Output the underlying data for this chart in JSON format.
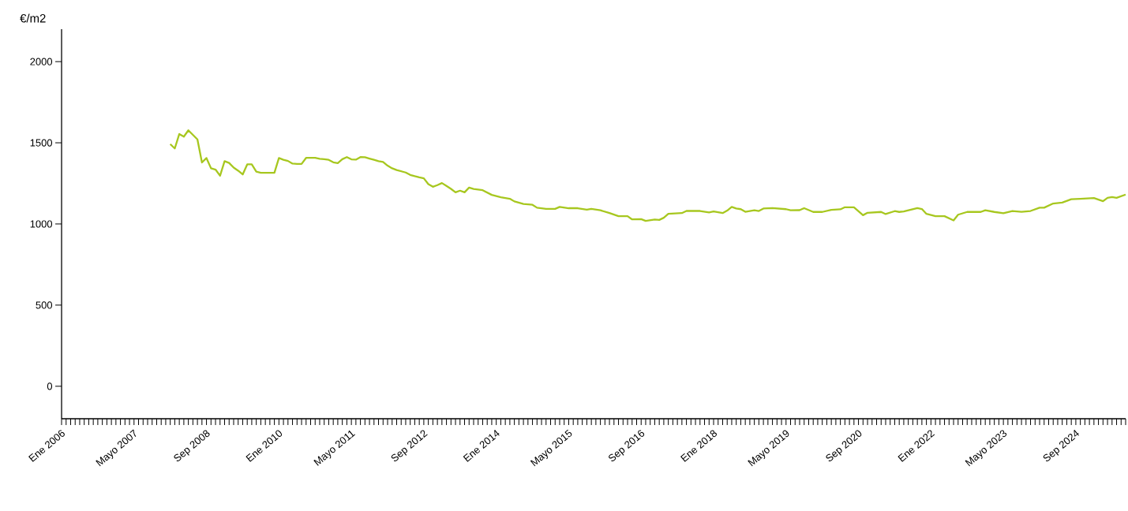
{
  "chart_data": {
    "type": "line",
    "ylabel": "€/m2",
    "xlim": [
      "2006-01",
      "2025-08"
    ],
    "ylim": [
      -200,
      2200
    ],
    "yticks": [
      0,
      500,
      1000,
      1500,
      2000
    ],
    "xticks": [
      {
        "value": "2006-01",
        "label": "Ene 2006"
      },
      {
        "value": "2006-02",
        "label": null
      },
      {
        "value": "2006-03",
        "label": null
      },
      {
        "value": "2006-04",
        "label": null
      },
      {
        "value": "2006-05",
        "label": null
      },
      {
        "value": "2006-06",
        "label": null
      },
      {
        "value": "2006-07",
        "label": null
      },
      {
        "value": "2006-08",
        "label": null
      },
      {
        "value": "2006-09",
        "label": null
      },
      {
        "value": "2006-10",
        "label": null
      },
      {
        "value": "2006-11",
        "label": null
      },
      {
        "value": "2006-12",
        "label": null
      },
      {
        "value": "2007-01",
        "label": null
      },
      {
        "value": "2007-02",
        "label": null
      },
      {
        "value": "2007-03",
        "label": null
      },
      {
        "value": "2007-04",
        "label": null
      },
      {
        "value": "2007-05",
        "label": "Mayo 2007"
      },
      {
        "value": "2007-06",
        "label": null
      },
      {
        "value": "2007-07",
        "label": null
      },
      {
        "value": "2007-08",
        "label": null
      },
      {
        "value": "2007-09",
        "label": null
      },
      {
        "value": "2007-10",
        "label": null
      },
      {
        "value": "2007-11",
        "label": null
      },
      {
        "value": "2007-12",
        "label": null
      },
      {
        "value": "2008-01",
        "label": null
      },
      {
        "value": "2008-02",
        "label": null
      },
      {
        "value": "2008-03",
        "label": null
      },
      {
        "value": "2008-04",
        "label": null
      },
      {
        "value": "2008-05",
        "label": null
      },
      {
        "value": "2008-06",
        "label": null
      },
      {
        "value": "2008-07",
        "label": null
      },
      {
        "value": "2008-08",
        "label": null
      },
      {
        "value": "2008-09",
        "label": "Sep 2008"
      },
      {
        "value": "2008-10",
        "label": null
      },
      {
        "value": "2008-11",
        "label": null
      },
      {
        "value": "2008-12",
        "label": null
      },
      {
        "value": "2009-01",
        "label": null
      },
      {
        "value": "2009-02",
        "label": null
      },
      {
        "value": "2009-03",
        "label": null
      },
      {
        "value": "2009-04",
        "label": null
      },
      {
        "value": "2009-05",
        "label": null
      },
      {
        "value": "2009-06",
        "label": null
      },
      {
        "value": "2009-07",
        "label": null
      },
      {
        "value": "2009-08",
        "label": null
      },
      {
        "value": "2009-09",
        "label": null
      },
      {
        "value": "2009-10",
        "label": null
      },
      {
        "value": "2009-11",
        "label": null
      },
      {
        "value": "2009-12",
        "label": null
      },
      {
        "value": "2010-01",
        "label": "Ene 2010"
      },
      {
        "value": "2010-02",
        "label": null
      },
      {
        "value": "2010-03",
        "label": null
      },
      {
        "value": "2010-04",
        "label": null
      },
      {
        "value": "2010-05",
        "label": null
      },
      {
        "value": "2010-06",
        "label": null
      },
      {
        "value": "2010-07",
        "label": null
      },
      {
        "value": "2010-08",
        "label": null
      },
      {
        "value": "2010-09",
        "label": null
      },
      {
        "value": "2010-10",
        "label": null
      },
      {
        "value": "2010-11",
        "label": null
      },
      {
        "value": "2010-12",
        "label": null
      },
      {
        "value": "2011-01",
        "label": null
      },
      {
        "value": "2011-02",
        "label": null
      },
      {
        "value": "2011-03",
        "label": null
      },
      {
        "value": "2011-04",
        "label": null
      },
      {
        "value": "2011-05",
        "label": "Mayo 2011"
      },
      {
        "value": "2011-06",
        "label": null
      },
      {
        "value": "2011-07",
        "label": null
      },
      {
        "value": "2011-08",
        "label": null
      },
      {
        "value": "2011-09",
        "label": null
      },
      {
        "value": "2011-10",
        "label": null
      },
      {
        "value": "2011-11",
        "label": null
      },
      {
        "value": "2011-12",
        "label": null
      },
      {
        "value": "2012-01",
        "label": null
      },
      {
        "value": "2012-02",
        "label": null
      },
      {
        "value": "2012-03",
        "label": null
      },
      {
        "value": "2012-04",
        "label": null
      },
      {
        "value": "2012-05",
        "label": null
      },
      {
        "value": "2012-06",
        "label": null
      },
      {
        "value": "2012-07",
        "label": null
      },
      {
        "value": "2012-08",
        "label": null
      },
      {
        "value": "2012-09",
        "label": "Sep 2012"
      },
      {
        "value": "2012-10",
        "label": null
      },
      {
        "value": "2012-11",
        "label": null
      },
      {
        "value": "2012-12",
        "label": null
      },
      {
        "value": "2013-01",
        "label": null
      },
      {
        "value": "2013-02",
        "label": null
      },
      {
        "value": "2013-03",
        "label": null
      },
      {
        "value": "2013-04",
        "label": null
      },
      {
        "value": "2013-05",
        "label": null
      },
      {
        "value": "2013-06",
        "label": null
      },
      {
        "value": "2013-07",
        "label": null
      },
      {
        "value": "2013-08",
        "label": null
      },
      {
        "value": "2013-09",
        "label": null
      },
      {
        "value": "2013-10",
        "label": null
      },
      {
        "value": "2013-11",
        "label": null
      },
      {
        "value": "2013-12",
        "label": null
      },
      {
        "value": "2014-01",
        "label": "Ene 2014"
      },
      {
        "value": "2014-02",
        "label": null
      },
      {
        "value": "2014-03",
        "label": null
      },
      {
        "value": "2014-04",
        "label": null
      },
      {
        "value": "2014-05",
        "label": null
      },
      {
        "value": "2014-06",
        "label": null
      },
      {
        "value": "2014-07",
        "label": null
      },
      {
        "value": "2014-08",
        "label": null
      },
      {
        "value": "2014-09",
        "label": null
      },
      {
        "value": "2014-10",
        "label": null
      },
      {
        "value": "2014-11",
        "label": null
      },
      {
        "value": "2014-12",
        "label": null
      },
      {
        "value": "2015-01",
        "label": null
      },
      {
        "value": "2015-02",
        "label": null
      },
      {
        "value": "2015-03",
        "label": null
      },
      {
        "value": "2015-04",
        "label": null
      },
      {
        "value": "2015-05",
        "label": "Mayo 2015"
      },
      {
        "value": "2015-06",
        "label": null
      },
      {
        "value": "2015-07",
        "label": null
      },
      {
        "value": "2015-08",
        "label": null
      },
      {
        "value": "2015-09",
        "label": null
      },
      {
        "value": "2015-10",
        "label": null
      },
      {
        "value": "2015-11",
        "label": null
      },
      {
        "value": "2015-12",
        "label": null
      },
      {
        "value": "2016-01",
        "label": null
      },
      {
        "value": "2016-02",
        "label": null
      },
      {
        "value": "2016-03",
        "label": null
      },
      {
        "value": "2016-04",
        "label": null
      },
      {
        "value": "2016-05",
        "label": null
      },
      {
        "value": "2016-06",
        "label": null
      },
      {
        "value": "2016-07",
        "label": null
      },
      {
        "value": "2016-08",
        "label": null
      },
      {
        "value": "2016-09",
        "label": "Sep 2016"
      },
      {
        "value": "2016-10",
        "label": null
      },
      {
        "value": "2016-11",
        "label": null
      },
      {
        "value": "2016-12",
        "label": null
      },
      {
        "value": "2017-01",
        "label": null
      },
      {
        "value": "2017-02",
        "label": null
      },
      {
        "value": "2017-03",
        "label": null
      },
      {
        "value": "2017-04",
        "label": null
      },
      {
        "value": "2017-05",
        "label": null
      },
      {
        "value": "2017-06",
        "label": null
      },
      {
        "value": "2017-07",
        "label": null
      },
      {
        "value": "2017-08",
        "label": null
      },
      {
        "value": "2017-09",
        "label": null
      },
      {
        "value": "2017-10",
        "label": null
      },
      {
        "value": "2017-11",
        "label": null
      },
      {
        "value": "2017-12",
        "label": null
      },
      {
        "value": "2018-01",
        "label": "Ene 2018"
      },
      {
        "value": "2018-02",
        "label": null
      },
      {
        "value": "2018-03",
        "label": null
      },
      {
        "value": "2018-04",
        "label": null
      },
      {
        "value": "2018-05",
        "label": null
      },
      {
        "value": "2018-06",
        "label": null
      },
      {
        "value": "2018-07",
        "label": null
      },
      {
        "value": "2018-08",
        "label": null
      },
      {
        "value": "2018-09",
        "label": null
      },
      {
        "value": "2018-10",
        "label": null
      },
      {
        "value": "2018-11",
        "label": null
      },
      {
        "value": "2018-12",
        "label": null
      },
      {
        "value": "2019-01",
        "label": null
      },
      {
        "value": "2019-02",
        "label": null
      },
      {
        "value": "2019-03",
        "label": null
      },
      {
        "value": "2019-04",
        "label": null
      },
      {
        "value": "2019-05",
        "label": "Mayo 2019"
      },
      {
        "value": "2019-06",
        "label": null
      },
      {
        "value": "2019-07",
        "label": null
      },
      {
        "value": "2019-08",
        "label": null
      },
      {
        "value": "2019-09",
        "label": null
      },
      {
        "value": "2019-10",
        "label": null
      },
      {
        "value": "2019-11",
        "label": null
      },
      {
        "value": "2019-12",
        "label": null
      },
      {
        "value": "2020-01",
        "label": null
      },
      {
        "value": "2020-02",
        "label": null
      },
      {
        "value": "2020-03",
        "label": null
      },
      {
        "value": "2020-04",
        "label": null
      },
      {
        "value": "2020-05",
        "label": null
      },
      {
        "value": "2020-06",
        "label": null
      },
      {
        "value": "2020-07",
        "label": null
      },
      {
        "value": "2020-08",
        "label": null
      },
      {
        "value": "2020-09",
        "label": "Sep 2020"
      },
      {
        "value": "2020-10",
        "label": null
      },
      {
        "value": "2020-11",
        "label": null
      },
      {
        "value": "2020-12",
        "label": null
      },
      {
        "value": "2021-01",
        "label": null
      },
      {
        "value": "2021-02",
        "label": null
      },
      {
        "value": "2021-03",
        "label": null
      },
      {
        "value": "2021-04",
        "label": null
      },
      {
        "value": "2021-05",
        "label": null
      },
      {
        "value": "2021-06",
        "label": null
      },
      {
        "value": "2021-07",
        "label": null
      },
      {
        "value": "2021-08",
        "label": null
      },
      {
        "value": "2021-09",
        "label": null
      },
      {
        "value": "2021-10",
        "label": null
      },
      {
        "value": "2021-11",
        "label": null
      },
      {
        "value": "2021-12",
        "label": null
      },
      {
        "value": "2022-01",
        "label": "Ene 2022"
      },
      {
        "value": "2022-02",
        "label": null
      },
      {
        "value": "2022-03",
        "label": null
      },
      {
        "value": "2022-04",
        "label": null
      },
      {
        "value": "2022-05",
        "label": null
      },
      {
        "value": "2022-06",
        "label": null
      },
      {
        "value": "2022-07",
        "label": null
      },
      {
        "value": "2022-08",
        "label": null
      },
      {
        "value": "2022-09",
        "label": null
      },
      {
        "value": "2022-10",
        "label": null
      },
      {
        "value": "2022-11",
        "label": null
      },
      {
        "value": "2022-12",
        "label": null
      },
      {
        "value": "2023-01",
        "label": null
      },
      {
        "value": "2023-02",
        "label": null
      },
      {
        "value": "2023-03",
        "label": null
      },
      {
        "value": "2023-04",
        "label": null
      },
      {
        "value": "2023-05",
        "label": "Mayo 2023"
      },
      {
        "value": "2023-06",
        "label": null
      },
      {
        "value": "2023-07",
        "label": null
      },
      {
        "value": "2023-08",
        "label": null
      },
      {
        "value": "2023-09",
        "label": null
      },
      {
        "value": "2023-10",
        "label": null
      },
      {
        "value": "2023-11",
        "label": null
      },
      {
        "value": "2023-12",
        "label": null
      },
      {
        "value": "2024-01",
        "label": null
      },
      {
        "value": "2024-02",
        "label": null
      },
      {
        "value": "2024-03",
        "label": null
      },
      {
        "value": "2024-04",
        "label": null
      },
      {
        "value": "2024-05",
        "label": null
      },
      {
        "value": "2024-06",
        "label": null
      },
      {
        "value": "2024-07",
        "label": null
      },
      {
        "value": "2024-08",
        "label": null
      },
      {
        "value": "2024-09",
        "label": "Sep 2024"
      },
      {
        "value": "2024-10",
        "label": null
      },
      {
        "value": "2024-11",
        "label": null
      },
      {
        "value": "2024-12",
        "label": null
      },
      {
        "value": "2025-01",
        "label": null
      },
      {
        "value": "2025-02",
        "label": null
      },
      {
        "value": "2025-03",
        "label": null
      },
      {
        "value": "2025-04",
        "label": null
      },
      {
        "value": "2025-05",
        "label": null
      },
      {
        "value": "2025-06",
        "label": null
      },
      {
        "value": "2025-07",
        "label": null
      },
      {
        "value": "2025-08",
        "label": null
      }
    ],
    "series": [
      {
        "color": "#a7c71f",
        "x": [
          "2008-01",
          "2008-02",
          "2008-03",
          "2008-04",
          "2008-05",
          "2008-06",
          "2008-07",
          "2008-08",
          "2008-09",
          "2008-10",
          "2008-11",
          "2008-12",
          "2009-01",
          "2009-02",
          "2009-03",
          "2009-04",
          "2009-05",
          "2009-06",
          "2009-07",
          "2009-08",
          "2009-09",
          "2009-12",
          "2010-01",
          "2010-02",
          "2010-03",
          "2010-04",
          "2010-05",
          "2010-06",
          "2010-07",
          "2010-09",
          "2010-10",
          "2010-11",
          "2010-12",
          "2011-01",
          "2011-02",
          "2011-03",
          "2011-04",
          "2011-05",
          "2011-06",
          "2011-07",
          "2011-08",
          "2011-09",
          "2011-10",
          "2011-11",
          "2011-12",
          "2012-01",
          "2012-02",
          "2012-03",
          "2012-05",
          "2012-06",
          "2012-07",
          "2012-08",
          "2012-09",
          "2012-10",
          "2012-11",
          "2012-12",
          "2013-01",
          "2013-02",
          "2013-03",
          "2013-04",
          "2013-05",
          "2013-06",
          "2013-07",
          "2013-08",
          "2013-10",
          "2013-12",
          "2014-02",
          "2014-04",
          "2014-05",
          "2014-07",
          "2014-09",
          "2014-10",
          "2014-12",
          "2015-02",
          "2015-03",
          "2015-05",
          "2015-07",
          "2015-09",
          "2015-10",
          "2015-12",
          "2016-02",
          "2016-04",
          "2016-06",
          "2016-07",
          "2016-09",
          "2016-10",
          "2016-12",
          "2017-01",
          "2017-02",
          "2017-03",
          "2017-06",
          "2017-07",
          "2017-10",
          "2017-12",
          "2018-01",
          "2018-03",
          "2018-04",
          "2018-05",
          "2018-06",
          "2018-07",
          "2018-08",
          "2018-10",
          "2018-11",
          "2018-12",
          "2019-02",
          "2019-05",
          "2019-06",
          "2019-08",
          "2019-09",
          "2019-11",
          "2020-01",
          "2020-03",
          "2020-05",
          "2020-06",
          "2020-08",
          "2020-10",
          "2020-11",
          "2021-02",
          "2021-03",
          "2021-05",
          "2021-06",
          "2021-07",
          "2021-10",
          "2021-11",
          "2021-12",
          "2022-02",
          "2022-04",
          "2022-06",
          "2022-07",
          "2022-09",
          "2022-12",
          "2023-01",
          "2023-03",
          "2023-05",
          "2023-07",
          "2023-09",
          "2023-11",
          "2024-01",
          "2024-02",
          "2024-04",
          "2024-06",
          "2024-08",
          "2024-10",
          "2025-01",
          "2025-03",
          "2025-04",
          "2025-05",
          "2025-06",
          "2025-08"
        ],
        "values": [
          1492,
          1465,
          1554,
          1538,
          1577,
          1549,
          1521,
          1379,
          1406,
          1343,
          1335,
          1297,
          1387,
          1376,
          1347,
          1328,
          1305,
          1367,
          1367,
          1322,
          1315,
          1315,
          1406,
          1395,
          1388,
          1372,
          1370,
          1370,
          1407,
          1407,
          1401,
          1399,
          1395,
          1380,
          1375,
          1399,
          1412,
          1398,
          1396,
          1412,
          1411,
          1403,
          1395,
          1387,
          1382,
          1359,
          1343,
          1332,
          1317,
          1302,
          1294,
          1287,
          1281,
          1245,
          1229,
          1239,
          1252,
          1234,
          1216,
          1195,
          1205,
          1195,
          1224,
          1216,
          1208,
          1179,
          1165,
          1155,
          1139,
          1123,
          1118,
          1100,
          1093,
          1093,
          1105,
          1097,
          1097,
          1088,
          1093,
          1084,
          1067,
          1048,
          1048,
          1028,
          1030,
          1019,
          1027,
          1025,
          1038,
          1062,
          1067,
          1080,
          1080,
          1071,
          1077,
          1067,
          1082,
          1105,
          1095,
          1091,
          1075,
          1084,
          1080,
          1095,
          1098,
          1091,
          1084,
          1085,
          1097,
          1074,
          1074,
          1087,
          1090,
          1103,
          1103,
          1054,
          1069,
          1074,
          1061,
          1079,
          1074,
          1077,
          1098,
          1092,
          1062,
          1048,
          1048,
          1022,
          1057,
          1074,
          1074,
          1084,
          1074,
          1066,
          1080,
          1075,
          1080,
          1100,
          1100,
          1126,
          1132,
          1152,
          1155,
          1160,
          1140,
          1161,
          1166,
          1161,
          1181
        ]
      }
    ]
  }
}
